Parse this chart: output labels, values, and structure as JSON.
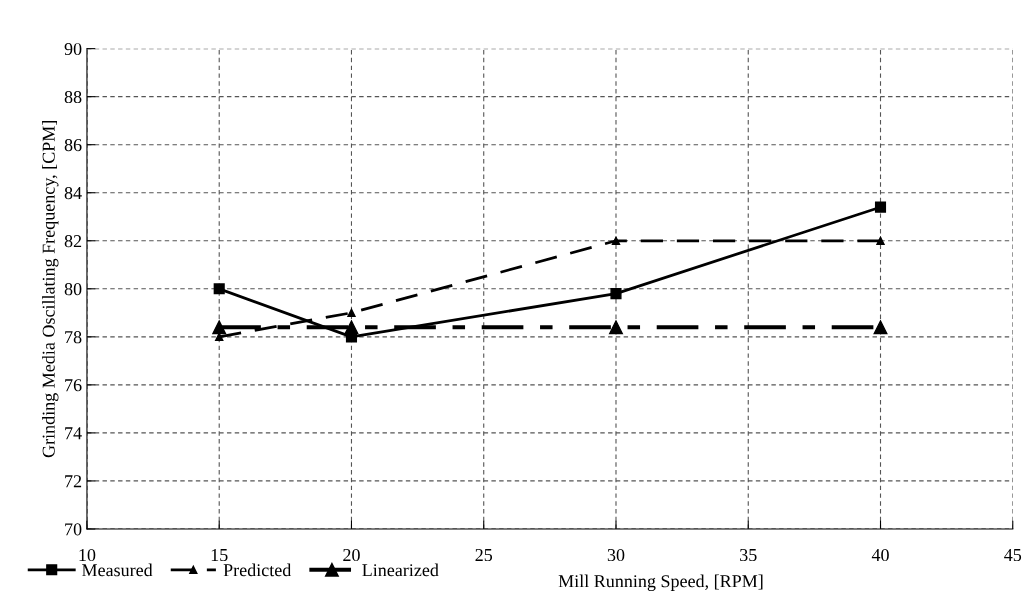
{
  "chart_data": {
    "type": "line",
    "x": [
      15,
      20,
      30,
      40
    ],
    "xlabel": "Mill Running Speed, [RPM]",
    "ylabel": "Grinding Media Oscillating Frequency, [CPM]",
    "series": [
      {
        "name": "Measured",
        "color": "#000000",
        "values": [
          80,
          78,
          79.8,
          83.4
        ],
        "marker": "square",
        "line_style": "solid"
      },
      {
        "name": "Predicted",
        "color": "#000000",
        "values": [
          78,
          79,
          82,
          82
        ],
        "marker": "triangle",
        "line_style": "dashed"
      },
      {
        "name": "Linearized",
        "color": "#000000",
        "values": [
          78.4,
          78.4,
          78.4,
          78.4
        ],
        "marker": "triangle",
        "line_style": "dashdot"
      }
    ],
    "xlim": [
      10,
      45
    ],
    "xticks": [
      10,
      15,
      20,
      25,
      30,
      35,
      40,
      45
    ],
    "ylim": [
      70,
      90
    ],
    "yticks": [
      70,
      72,
      74,
      76,
      78,
      80,
      82,
      84,
      86,
      88,
      90
    ],
    "grid": true,
    "legend": "bottom left"
  }
}
